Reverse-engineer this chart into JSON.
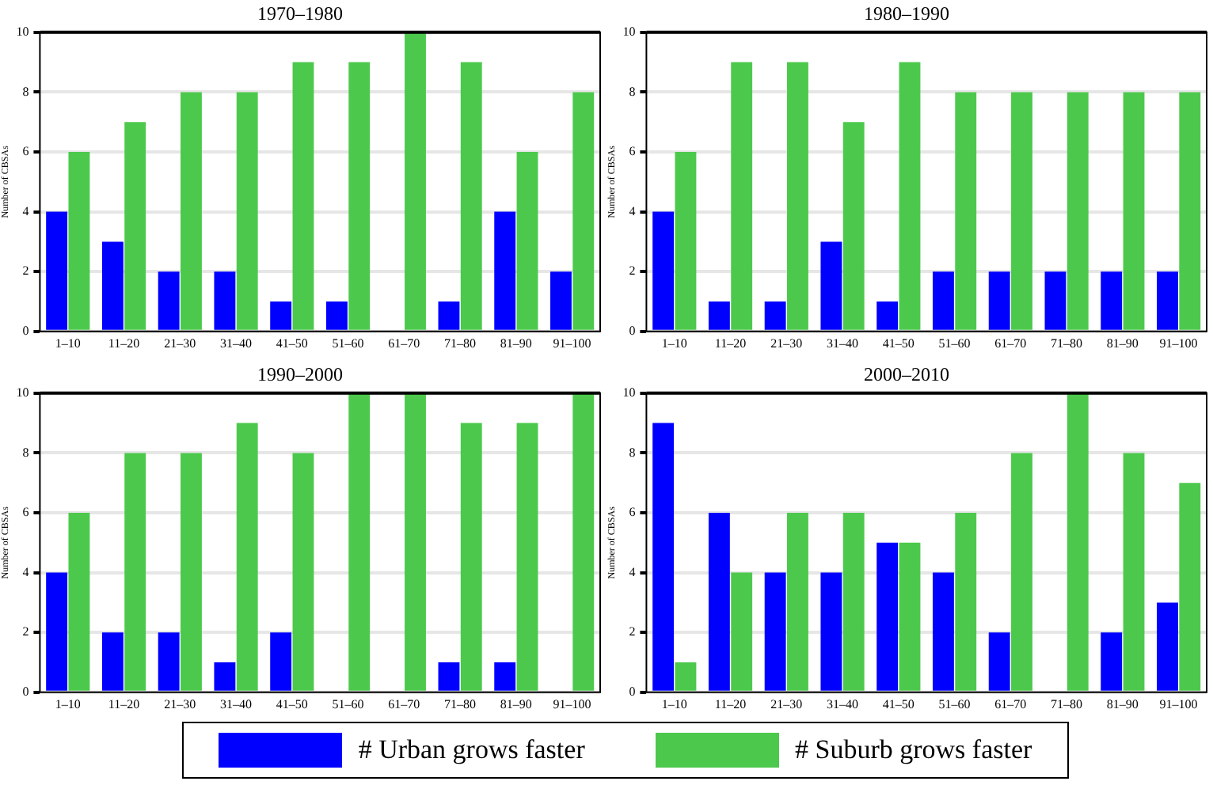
{
  "chart_data": [
    {
      "type": "bar",
      "title": "1970–1980",
      "ylabel": "Number of CBSAs",
      "categories": [
        "1–10",
        "11–20",
        "21–30",
        "31–40",
        "41–50",
        "51–60",
        "61–70",
        "71–80",
        "81–90",
        "91–100"
      ],
      "series": [
        {
          "name": "# Urban grows faster",
          "color": "#0000ff",
          "values": [
            4,
            3,
            2,
            2,
            1,
            1,
            0,
            1,
            4,
            2
          ]
        },
        {
          "name": "# Suburb grows faster",
          "color": "#4cc94c",
          "values": [
            6,
            7,
            8,
            8,
            9,
            9,
            10,
            9,
            6,
            8
          ]
        }
      ],
      "ylim": [
        0,
        10
      ],
      "yticks": [
        0,
        2,
        4,
        6,
        8,
        10
      ],
      "grid": "y",
      "legend": "bottom"
    },
    {
      "type": "bar",
      "title": "1980–1990",
      "ylabel": "Number of CBSAs",
      "categories": [
        "1–10",
        "11–20",
        "21–30",
        "31–40",
        "41–50",
        "51–60",
        "61–70",
        "71–80",
        "81–90",
        "91–100"
      ],
      "series": [
        {
          "name": "# Urban grows faster",
          "color": "#0000ff",
          "values": [
            4,
            1,
            1,
            3,
            1,
            2,
            2,
            2,
            2,
            2
          ]
        },
        {
          "name": "# Suburb grows faster",
          "color": "#4cc94c",
          "values": [
            6,
            9,
            9,
            7,
            9,
            8,
            8,
            8,
            8,
            8
          ]
        }
      ],
      "ylim": [
        0,
        10
      ],
      "yticks": [
        0,
        2,
        4,
        6,
        8,
        10
      ],
      "grid": "y",
      "legend": "bottom"
    },
    {
      "type": "bar",
      "title": "1990–2000",
      "ylabel": "Number of CBSAs",
      "categories": [
        "1–10",
        "11–20",
        "21–30",
        "31–40",
        "41–50",
        "51–60",
        "61–70",
        "71–80",
        "81–90",
        "91–100"
      ],
      "series": [
        {
          "name": "# Urban grows faster",
          "color": "#0000ff",
          "values": [
            4,
            2,
            2,
            1,
            2,
            0,
            0,
            1,
            1,
            0
          ]
        },
        {
          "name": "# Suburb grows faster",
          "color": "#4cc94c",
          "values": [
            6,
            8,
            8,
            9,
            8,
            10,
            10,
            9,
            9,
            10
          ]
        }
      ],
      "ylim": [
        0,
        10
      ],
      "yticks": [
        0,
        2,
        4,
        6,
        8,
        10
      ],
      "grid": "y",
      "legend": "bottom"
    },
    {
      "type": "bar",
      "title": "2000–2010",
      "ylabel": "Number of CBSAs",
      "categories": [
        "1–10",
        "11–20",
        "21–30",
        "31–40",
        "41–50",
        "51–60",
        "61–70",
        "71–80",
        "81–90",
        "91–100"
      ],
      "series": [
        {
          "name": "# Urban grows faster",
          "color": "#0000ff",
          "values": [
            9,
            6,
            4,
            4,
            5,
            4,
            2,
            0,
            2,
            3
          ]
        },
        {
          "name": "# Suburb grows faster",
          "color": "#4cc94c",
          "values": [
            1,
            4,
            6,
            6,
            5,
            6,
            8,
            10,
            8,
            7
          ]
        }
      ],
      "ylim": [
        0,
        10
      ],
      "yticks": [
        0,
        2,
        4,
        6,
        8,
        10
      ],
      "grid": "y",
      "legend": "bottom"
    }
  ]
}
